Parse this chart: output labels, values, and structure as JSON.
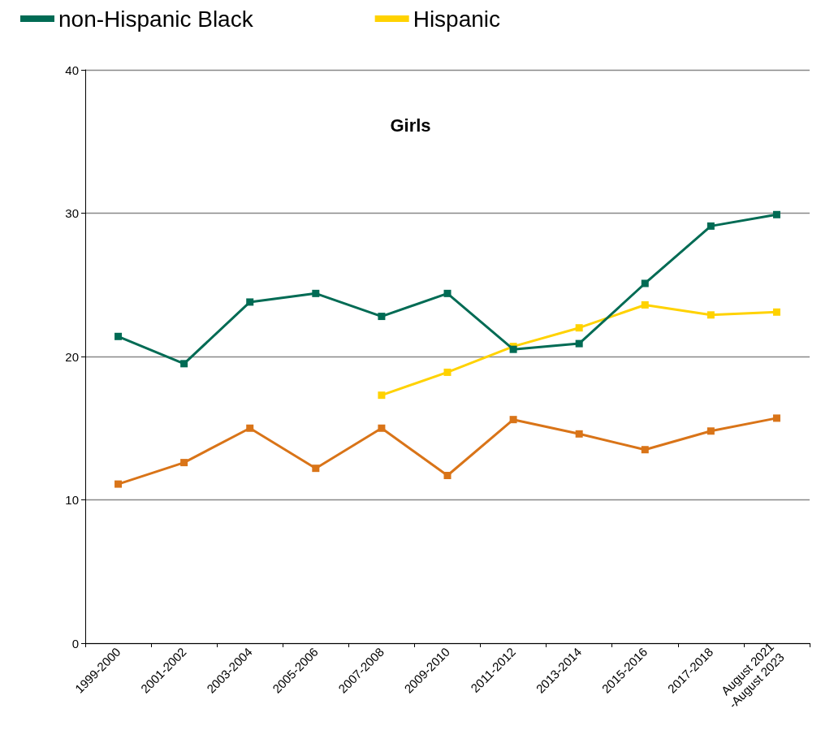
{
  "chart_data": {
    "type": "line",
    "title": "Girls",
    "categories": [
      "1999-2000",
      "2001-2002",
      "2003-2004",
      "2005-2006",
      "2007-2008",
      "2009-2010",
      "2011-2012",
      "2013-2014",
      "2015-2016",
      "2017-2018",
      "August 2021\n-August 2023"
    ],
    "series": [
      {
        "name": "non-Hispanic Black",
        "color": "#006b54",
        "values": [
          21.4,
          19.5,
          23.8,
          24.4,
          22.8,
          24.4,
          20.5,
          20.9,
          25.1,
          29.1,
          29.9
        ]
      },
      {
        "name": "Hispanic",
        "color": "#ffd200",
        "values": [
          null,
          null,
          null,
          null,
          17.3,
          18.9,
          20.7,
          22.0,
          23.6,
          22.9,
          23.1
        ]
      },
      {
        "color": "#d97418",
        "values": [
          11.1,
          12.6,
          15.0,
          12.2,
          15.0,
          11.7,
          15.6,
          14.6,
          13.5,
          14.8,
          15.7
        ]
      }
    ],
    "ylim": [
      0,
      40
    ],
    "yticks": [
      0,
      10,
      20,
      30,
      40
    ],
    "grid": "y",
    "legend": "top left",
    "marker": "square",
    "line_style": "solid"
  }
}
